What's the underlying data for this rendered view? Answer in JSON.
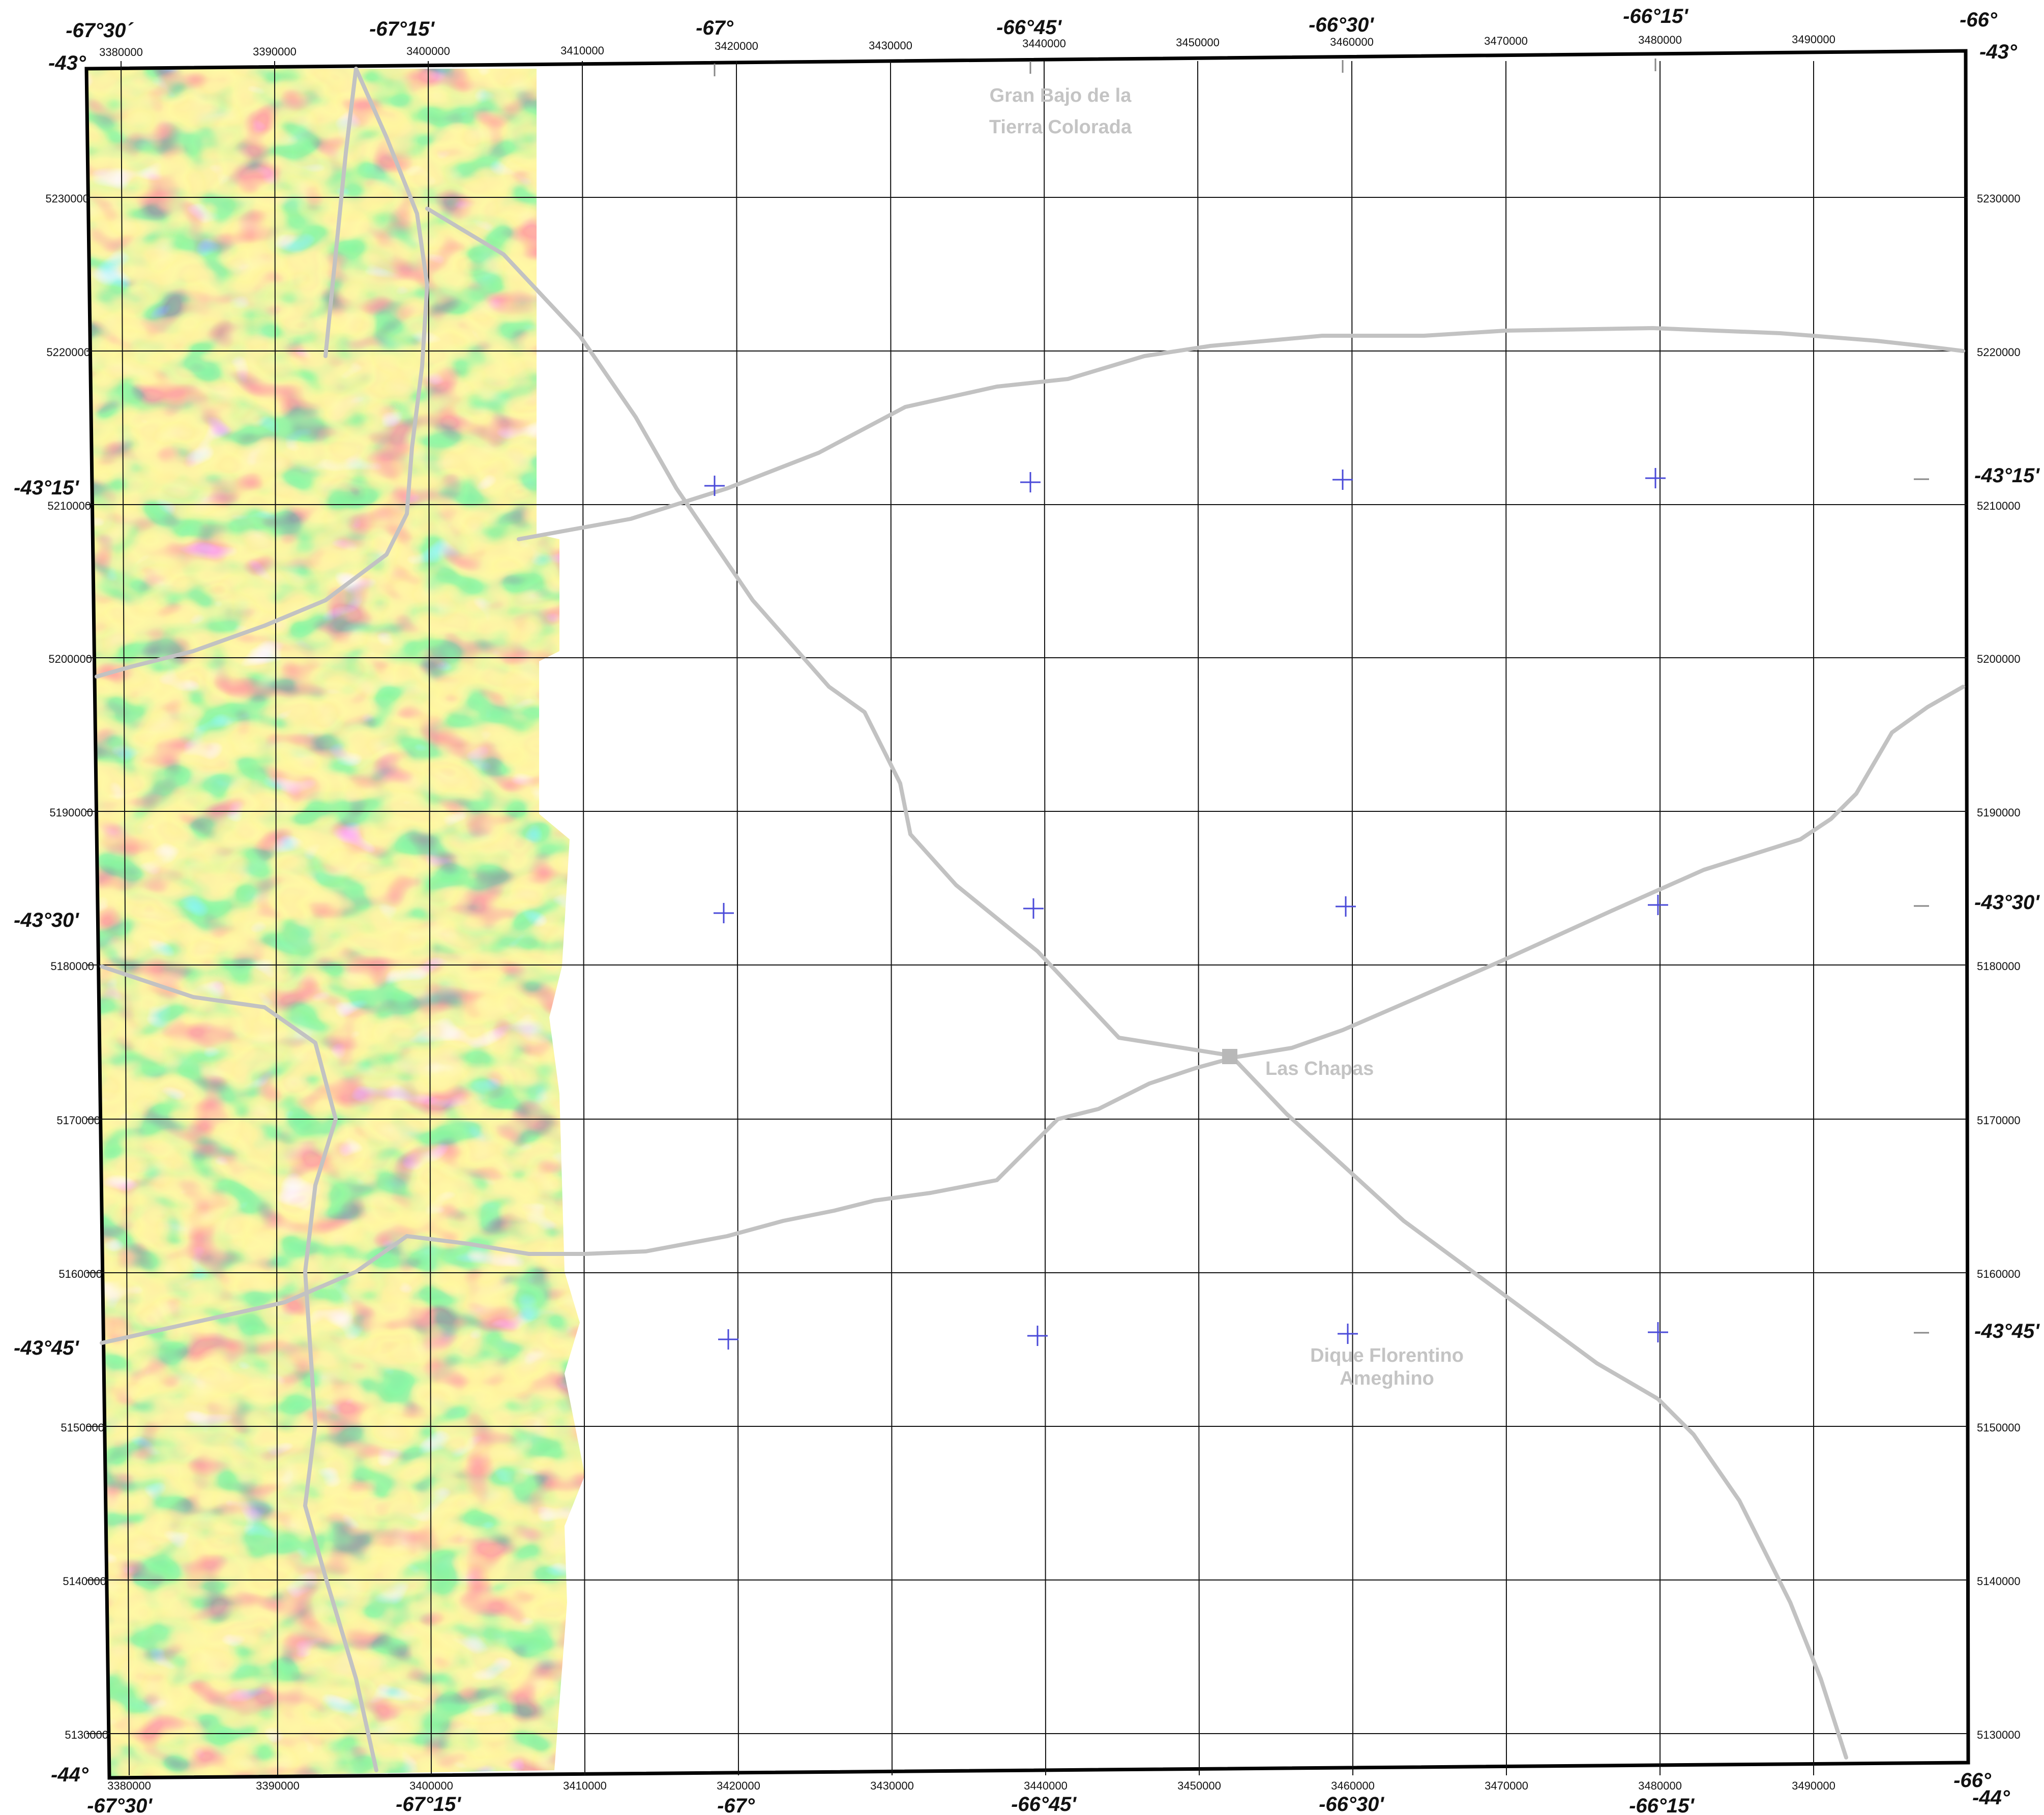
{
  "map": {
    "utm_eastings_top": [
      "3380000",
      "3390000",
      "3400000",
      "3410000",
      "3420000",
      "3430000",
      "3440000",
      "3450000",
      "3460000",
      "3470000",
      "3480000",
      "3490000"
    ],
    "utm_eastings_bottom": [
      "3380000",
      "3390000",
      "3400000",
      "3410000",
      "3420000",
      "3430000",
      "3440000",
      "3450000",
      "3460000",
      "3470000",
      "3480000",
      "3490000"
    ],
    "utm_northings_left": [
      "5230000",
      "5220000",
      "5210000",
      "5200000",
      "5190000",
      "5180000",
      "5170000",
      "5160000",
      "5150000",
      "5140000",
      "5130000"
    ],
    "utm_northings_right": [
      "5230000",
      "5220000",
      "5210000",
      "5200000",
      "5190000",
      "5180000",
      "5170000",
      "5160000",
      "5150000",
      "5140000",
      "5130000"
    ],
    "longitude_labels_top": [
      "-67°30´",
      "-67°15'",
      "-67°",
      "-66°45'",
      "-66°30'",
      "-66°15'",
      "-66°"
    ],
    "longitude_labels_bottom": [
      "-67°30'",
      "-67°15'",
      "-67°",
      "-66°45'",
      "-66°30'",
      "-66°15'",
      "-66°"
    ],
    "latitude_labels_left": [
      "-43°",
      "-43°15'",
      "-43°30'",
      "-43°45'",
      "-44°"
    ],
    "latitude_labels_right": [
      "-43°",
      "-43°15'",
      "-43°30'",
      "-43°45'",
      "-44°"
    ],
    "places": {
      "gran_bajo_line1": "Gran Bajo de la",
      "gran_bajo_line2": "Tierra Colorada",
      "las_chapas": "Las Chapas",
      "dique_line1": "Dique Florentino",
      "dique_line2": "Ameghino"
    },
    "colors": {
      "road": "#c2c2c2",
      "graticule_cross": "#4a4ad8",
      "town_marker": "#b8b8b8",
      "anomaly_ramp": [
        "#4040d8",
        "#40c8f0",
        "#48e8b0",
        "#58e060",
        "#c8f060",
        "#f8e058",
        "#ffa060",
        "#ff6870",
        "#ff70b0",
        "#f8a0e8"
      ]
    }
  }
}
